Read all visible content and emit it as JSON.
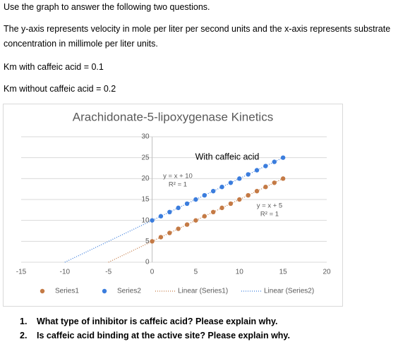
{
  "lines": [
    "Use the graph to answer the following two questions.",
    "The y-axis represents velocity in mole per liter per second units and the x-axis represents substrate concentration in millimole per liter units.",
    "Km with caffeic acid = 0.1",
    "Km without caffeic acid = 0.2"
  ],
  "chart_data": {
    "type": "scatter",
    "title": "Arachidonate-5-lipoxygenase Kinetics",
    "x": [
      0,
      1,
      2,
      3,
      4,
      5,
      6,
      7,
      8,
      9,
      10,
      11,
      12,
      13,
      14,
      15
    ],
    "series": [
      {
        "name": "Series1",
        "color": "#c47a45",
        "values": [
          5,
          6,
          7,
          8,
          9,
          10,
          11,
          12,
          13,
          14,
          15,
          16,
          17,
          18,
          19,
          20
        ],
        "trendline": {
          "name": "Linear (Series1)",
          "equation": "y = x + 5",
          "r2": "R² = 1",
          "x": [
            -5,
            15
          ],
          "values": [
            0,
            20
          ]
        }
      },
      {
        "name": "Series2",
        "color": "#3b7ddd",
        "values": [
          10,
          11,
          12,
          13,
          14,
          15,
          16,
          17,
          18,
          19,
          20,
          21,
          22,
          23,
          24,
          25
        ],
        "trendline": {
          "name": "Linear (Series2)",
          "equation": "y = x + 10",
          "r2": "R² = 1",
          "x": [
            -10,
            15
          ],
          "values": [
            0,
            25
          ]
        }
      }
    ],
    "annotations": [
      "With caffeic acid"
    ],
    "xlim": [
      -15,
      20
    ],
    "xticks": [
      -15,
      -10,
      -5,
      0,
      5,
      10,
      15,
      20
    ],
    "ylim": [
      0,
      30
    ],
    "yticks": [
      0,
      5,
      10,
      15,
      20,
      25,
      30
    ],
    "grid": true,
    "legend": "bottom"
  },
  "questions": [
    {
      "number": "1.",
      "text": "What type of inhibitor is caffeic acid? Please explain why."
    },
    {
      "number": "2.",
      "text": "Is caffeic acid binding at the active site? Please explain why."
    }
  ]
}
